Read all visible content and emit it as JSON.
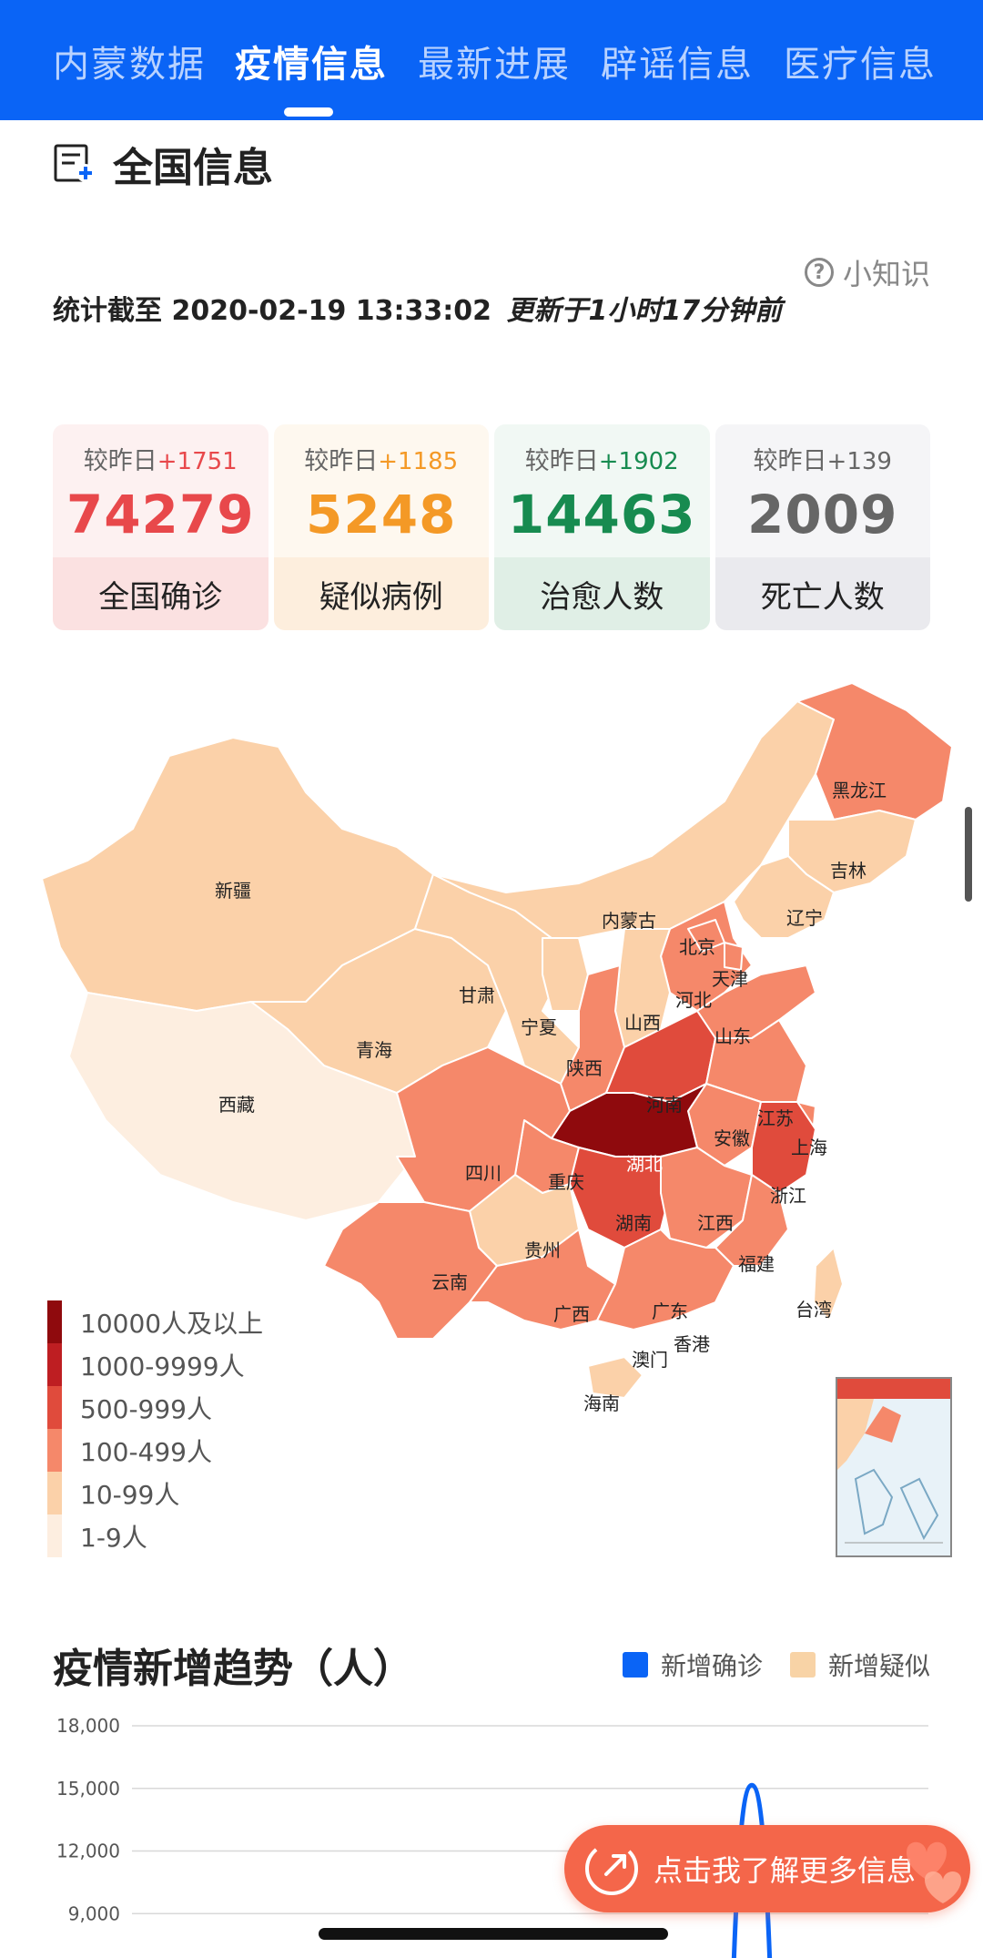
{
  "tabs": [
    {
      "label": "内蒙数据",
      "active": false
    },
    {
      "label": "疫情信息",
      "active": true
    },
    {
      "label": "最新进展",
      "active": false
    },
    {
      "label": "辟谣信息",
      "active": false
    },
    {
      "label": "医疗信息",
      "active": false
    }
  ],
  "section": {
    "icon": "report-icon",
    "title": "全国信息",
    "tips_label": "小知识",
    "tips_icon": "question-circle-icon"
  },
  "stat_time": {
    "prefix": "统计截至",
    "datetime": "2020-02-19 13:33:02",
    "updated": "更新于1小时17分钟前"
  },
  "cards": [
    {
      "compare": "较昨日",
      "delta": "+1751",
      "value": "74279",
      "label": "全国确诊",
      "color": "#e8484b",
      "top_bg": "#fdf1f1",
      "bot_bg": "#fbe1e1"
    },
    {
      "compare": "较昨日",
      "delta": "+1185",
      "value": "5248",
      "label": "疑似病例",
      "color": "#f49926",
      "top_bg": "#fef8ef",
      "bot_bg": "#fdeedd"
    },
    {
      "compare": "较昨日",
      "delta": "+1902",
      "value": "14463",
      "label": "治愈人数",
      "color": "#178b50",
      "top_bg": "#f1f8f4",
      "bot_bg": "#e0efe6"
    },
    {
      "compare": "较昨日",
      "delta": "+139",
      "value": "2009",
      "label": "死亡人数",
      "color": "#666666",
      "top_bg": "#f5f5f7",
      "bot_bg": "#eaeaee"
    }
  ],
  "map": {
    "provinces": [
      "新疆",
      "西藏",
      "青海",
      "甘肃",
      "宁夏",
      "内蒙古",
      "黑龙江",
      "吉林",
      "辽宁",
      "北京",
      "天津",
      "河北",
      "山西",
      "山东",
      "陕西",
      "河南",
      "江苏",
      "安徽",
      "上海",
      "湖北",
      "四川",
      "重庆",
      "浙江",
      "湖南",
      "江西",
      "贵州",
      "云南",
      "福建",
      "广西",
      "广东",
      "台湾",
      "香港",
      "澳门",
      "海南"
    ],
    "legend": [
      {
        "label": "10000人及以上",
        "color": "#8f0a0d"
      },
      {
        "label": "1000-9999人",
        "color": "#be1e22"
      },
      {
        "label": "500-999人",
        "color": "#e04b3c"
      },
      {
        "label": "100-499人",
        "color": "#f5886a"
      },
      {
        "label": "10-99人",
        "color": "#fbd1a9"
      },
      {
        "label": "1-9人",
        "color": "#fdeee0"
      }
    ]
  },
  "trend": {
    "title": "疫情新增趋势（人）",
    "legend": [
      {
        "label": "新增确诊",
        "color": "#0a64f6"
      },
      {
        "label": "新增疑似",
        "color": "#f8d3a6"
      }
    ],
    "yticks": [
      "18,000",
      "15,000",
      "12,000",
      "9,000"
    ]
  },
  "chart_data": {
    "type": "line",
    "title": "疫情新增趋势（人）",
    "series": [
      {
        "name": "新增确诊",
        "values": [
          null,
          15152,
          null
        ]
      },
      {
        "name": "新增疑似",
        "values": []
      }
    ],
    "ylim": [
      9000,
      18000
    ],
    "yticks": [
      9000,
      12000,
      15000,
      18000
    ],
    "grid": true,
    "legend_position": "top-right"
  },
  "float_button": {
    "label": "点击我了解更多信息",
    "icon": "external-link-icon"
  }
}
